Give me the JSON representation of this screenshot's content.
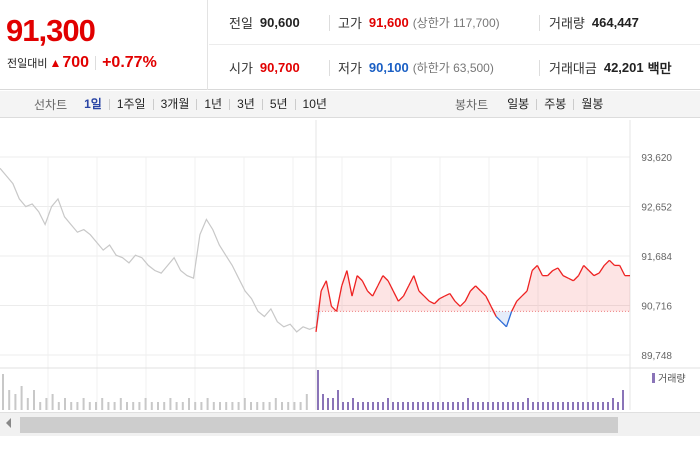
{
  "quote": {
    "price": "91,300",
    "change_caption": "전일대비",
    "change_icon": "up-triangle-icon",
    "change_arrow": "▲",
    "change_value": "700",
    "change_percent": "+0.77%",
    "stats": {
      "prev_close_label": "전일",
      "prev_close": "90,600",
      "high_label": "고가",
      "high": "91,600",
      "upper_limit": "(상한가 117,700)",
      "volume_label": "거래량",
      "volume": "464,447",
      "open_label": "시가",
      "open": "90,700",
      "low_label": "저가",
      "low": "90,100",
      "lower_limit": "(하한가 63,500)",
      "value_label": "거래대금",
      "value": "42,201",
      "value_unit": "백만"
    }
  },
  "toolbar": {
    "line_label": "선차트",
    "periods": [
      "1일",
      "1주일",
      "3개월",
      "1년",
      "3년",
      "5년",
      "10년"
    ],
    "active_period": "1일",
    "candle_label": "봉차트",
    "candles": [
      "일봉",
      "주봉",
      "월봉"
    ]
  },
  "chart_data": {
    "type": "line",
    "y_ticks": [
      "93,620",
      "92,652",
      "91,684",
      "90,716",
      "89,748"
    ],
    "ylim": [
      89748,
      93620
    ],
    "prev_close": 90600,
    "volume_legend": "거래량",
    "colors": {
      "up": "#ee2222",
      "down": "#2d6bd6",
      "previous_day": "#c8c8c8",
      "volume_prev": "#c8c8c8",
      "volume_today": "#8a74b8"
    },
    "previous_day_series": [
      93400,
      93250,
      93100,
      92800,
      92650,
      92700,
      92550,
      92300,
      92650,
      92800,
      92450,
      92300,
      92150,
      92200,
      92100,
      91950,
      91800,
      91900,
      91700,
      91650,
      91550,
      91700,
      91650,
      91500,
      91400,
      91350,
      91500,
      91650,
      91400,
      91300,
      91250,
      92100,
      92400,
      92200,
      91900,
      91700,
      91500,
      91250,
      91000,
      90850,
      90600,
      90500,
      90650,
      90400,
      90300,
      90350,
      90200,
      90300,
      90250,
      90300
    ],
    "today_series": [
      90200,
      91000,
      91200,
      90700,
      90600,
      91100,
      91400,
      90900,
      91300,
      91200,
      91000,
      90900,
      91100,
      91300,
      91200,
      91000,
      90800,
      90900,
      91100,
      91300,
      91000,
      90900,
      90800,
      90750,
      90850,
      90900,
      90950,
      90800,
      90700,
      90800,
      91000,
      91100,
      91000,
      90900,
      90700,
      90500,
      90400,
      90300,
      90600,
      90800,
      90900,
      91000,
      91400,
      91500,
      91300,
      91300,
      91400,
      91450,
      91300,
      91250,
      91200,
      91300,
      91500,
      91400,
      91300,
      91350,
      91500,
      91600,
      91500,
      91500,
      91300,
      91300
    ],
    "volume_prev": [
      0.9,
      0.5,
      0.4,
      0.6,
      0.3,
      0.5,
      0.2,
      0.3,
      0.4,
      0.2,
      0.3,
      0.2,
      0.2,
      0.3,
      0.2,
      0.2,
      0.3,
      0.2,
      0.2,
      0.3,
      0.2,
      0.2,
      0.2,
      0.3,
      0.2,
      0.2,
      0.2,
      0.3,
      0.2,
      0.2,
      0.3,
      0.2,
      0.2,
      0.3,
      0.2,
      0.2,
      0.2,
      0.2,
      0.2,
      0.3,
      0.2,
      0.2,
      0.2,
      0.2,
      0.3,
      0.2,
      0.2,
      0.2,
      0.2,
      0.4
    ],
    "volume_today": [
      1.0,
      0.4,
      0.3,
      0.3,
      0.5,
      0.2,
      0.2,
      0.3,
      0.2,
      0.2,
      0.2,
      0.2,
      0.2,
      0.2,
      0.3,
      0.2,
      0.2,
      0.2,
      0.2,
      0.2,
      0.2,
      0.2,
      0.2,
      0.2,
      0.2,
      0.2,
      0.2,
      0.2,
      0.2,
      0.2,
      0.3,
      0.2,
      0.2,
      0.2,
      0.2,
      0.2,
      0.2,
      0.2,
      0.2,
      0.2,
      0.2,
      0.2,
      0.3,
      0.2,
      0.2,
      0.2,
      0.2,
      0.2,
      0.2,
      0.2,
      0.2,
      0.2,
      0.2,
      0.2,
      0.2,
      0.2,
      0.2,
      0.2,
      0.2,
      0.3,
      0.2,
      0.5
    ]
  }
}
